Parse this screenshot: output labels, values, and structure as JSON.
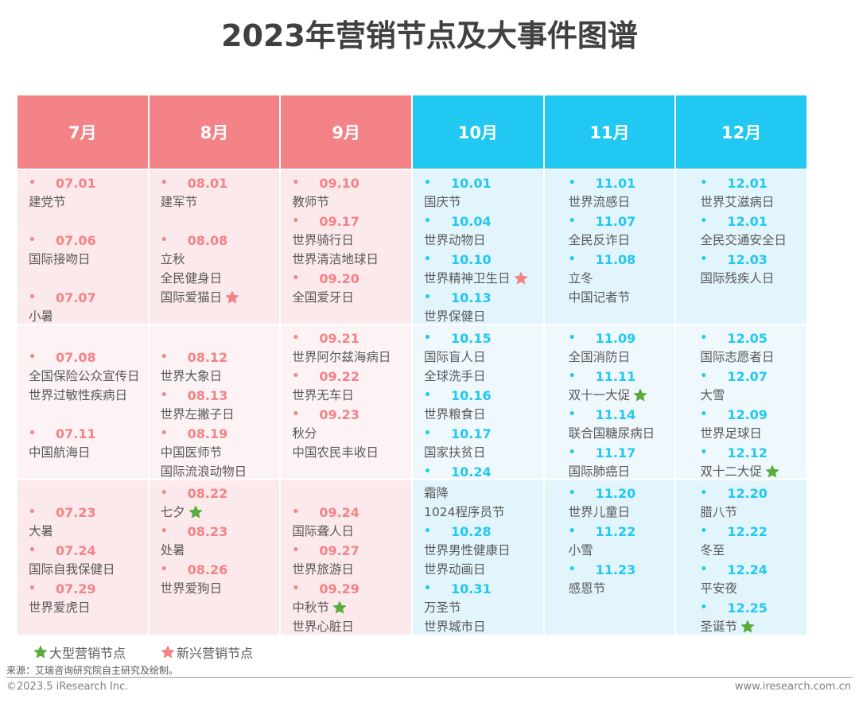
{
  "title": "2023年营销节点及大事件图谱",
  "colors": {
    "warm_header": "#f38387",
    "cool_header": "#21c8f1",
    "major_star": "#5aac3e",
    "emerging_star": "#f38387"
  },
  "months": [
    {
      "label": "7月",
      "tone": "warm"
    },
    {
      "label": "8月",
      "tone": "warm"
    },
    {
      "label": "9月",
      "tone": "warm"
    },
    {
      "label": "10月",
      "tone": "cool"
    },
    {
      "label": "11月",
      "tone": "cool"
    },
    {
      "label": "12月",
      "tone": "cool"
    }
  ],
  "rows": [
    [
      [
        {
          "date": "07.01",
          "events": [
            {
              "name": "建党节"
            }
          ]
        },
        {
          "date": "07.06",
          "gap": true,
          "events": [
            {
              "name": "国际接吻日"
            }
          ]
        },
        {
          "date": "07.07",
          "gap": true,
          "events": [
            {
              "name": "小暑"
            }
          ]
        }
      ],
      [
        {
          "date": "08.01",
          "events": [
            {
              "name": "建军节"
            }
          ]
        },
        {
          "date": "08.08",
          "gap": true,
          "events": [
            {
              "name": "立秋"
            },
            {
              "name": "全民健身日"
            },
            {
              "name": "国际爱猫日",
              "star": "emerging"
            }
          ]
        }
      ],
      [
        {
          "date": "09.10",
          "events": [
            {
              "name": "教师节"
            }
          ]
        },
        {
          "date": "09.17",
          "events": [
            {
              "name": "世界骑行日"
            },
            {
              "name": "世界清洁地球日"
            }
          ]
        },
        {
          "date": "09.20",
          "events": [
            {
              "name": "全国爱牙日"
            }
          ]
        }
      ],
      [
        {
          "date": "10.01",
          "events": [
            {
              "name": "国庆节"
            }
          ]
        },
        {
          "date": "10.04",
          "events": [
            {
              "name": "世界动物日"
            }
          ]
        },
        {
          "date": "10.10",
          "events": [
            {
              "name": "世界精神卫生日",
              "star": "emerging"
            }
          ]
        },
        {
          "date": "10.13",
          "events": [
            {
              "name": "世界保健日"
            }
          ]
        }
      ],
      [
        {
          "date": "11.01",
          "events": [
            {
              "name": "世界流感日"
            }
          ]
        },
        {
          "date": "11.07",
          "events": [
            {
              "name": "全民反诈日"
            }
          ]
        },
        {
          "date": "11.08",
          "events": [
            {
              "name": "立冬"
            },
            {
              "name": "中国记者节"
            }
          ]
        }
      ],
      [
        {
          "date": "12.01",
          "events": [
            {
              "name": "世界艾滋病日"
            }
          ]
        },
        {
          "date": "12.01",
          "events": [
            {
              "name": "全民交通安全日"
            }
          ]
        },
        {
          "date": "12.03",
          "events": [
            {
              "name": "国际残疾人日"
            }
          ]
        }
      ]
    ],
    [
      [
        {
          "date": "07.08",
          "gap": true,
          "events": [
            {
              "name": "全国保险公众宣传日"
            },
            {
              "name": "世界过敏性疾病日"
            }
          ]
        },
        {
          "date": "07.11",
          "gap": true,
          "events": [
            {
              "name": "中国航海日"
            }
          ]
        }
      ],
      [
        {
          "date": "08.12",
          "gap": true,
          "events": [
            {
              "name": "世界大象日"
            }
          ]
        },
        {
          "date": "08.13",
          "events": [
            {
              "name": "世界左撇子日"
            }
          ]
        },
        {
          "date": "08.19",
          "events": [
            {
              "name": "中国医师节"
            },
            {
              "name": "国际流浪动物日"
            }
          ]
        }
      ],
      [
        {
          "date": "09.21",
          "events": [
            {
              "name": "世界阿尔兹海病日"
            }
          ]
        },
        {
          "date": "09.22",
          "events": [
            {
              "name": "世界无车日"
            }
          ]
        },
        {
          "date": "09.23",
          "events": [
            {
              "name": "秋分"
            },
            {
              "name": "中国农民丰收日"
            }
          ]
        }
      ],
      [
        {
          "date": "10.15",
          "events": [
            {
              "name": "国际盲人日"
            },
            {
              "name": "全球洗手日"
            }
          ]
        },
        {
          "date": "10.16",
          "events": [
            {
              "name": "世界粮食日"
            }
          ]
        },
        {
          "date": "10.17",
          "events": [
            {
              "name": "国家扶贫日"
            }
          ]
        },
        {
          "date": "10.24",
          "events": []
        }
      ],
      [
        {
          "date": "11.09",
          "events": [
            {
              "name": "全国消防日"
            }
          ]
        },
        {
          "date": "11.11",
          "events": [
            {
              "name": "双十一大促",
              "star": "major"
            }
          ]
        },
        {
          "date": "11.14",
          "events": [
            {
              "name": "联合国糖尿病日"
            }
          ]
        },
        {
          "date": "11.17",
          "events": [
            {
              "name": "国际肺癌日"
            }
          ]
        }
      ],
      [
        {
          "date": "12.05",
          "events": [
            {
              "name": "国际志愿者日"
            }
          ]
        },
        {
          "date": "12.07",
          "events": [
            {
              "name": "大雪"
            }
          ]
        },
        {
          "date": "12.09",
          "events": [
            {
              "name": "世界足球日"
            }
          ]
        },
        {
          "date": "12.12",
          "events": [
            {
              "name": "双十二大促",
              "star": "major"
            }
          ]
        }
      ]
    ],
    [
      [
        {
          "date": "07.23",
          "gap": true,
          "events": [
            {
              "name": "大暑"
            }
          ]
        },
        {
          "date": "07.24",
          "events": [
            {
              "name": "国际自我保健日"
            }
          ]
        },
        {
          "date": "07.29",
          "events": [
            {
              "name": "世界爱虎日"
            }
          ]
        }
      ],
      [
        {
          "date": "08.22",
          "events": [
            {
              "name": "七夕",
              "star": "major"
            }
          ]
        },
        {
          "date": "08.23",
          "events": [
            {
              "name": "处暑"
            }
          ]
        },
        {
          "date": "08.26",
          "events": [
            {
              "name": "世界爱狗日"
            }
          ]
        }
      ],
      [
        {
          "date": "09.24",
          "gap": true,
          "events": [
            {
              "name": "国际聋人日"
            }
          ]
        },
        {
          "date": "09.27",
          "events": [
            {
              "name": "世界旅游日"
            }
          ]
        },
        {
          "date": "09.29",
          "events": [
            {
              "name": "中秋节",
              "star": "major"
            },
            {
              "name": "世界心脏日"
            }
          ]
        }
      ],
      [
        {
          "date": null,
          "events": [
            {
              "name": "霜降"
            },
            {
              "name": "1024程序员节"
            }
          ]
        },
        {
          "date": "10.28",
          "events": [
            {
              "name": "世界男性健康日"
            },
            {
              "name": "世界动画日"
            }
          ]
        },
        {
          "date": "10.31",
          "events": [
            {
              "name": "万圣节"
            },
            {
              "name": "世界城市日"
            }
          ]
        }
      ],
      [
        {
          "date": "11.20",
          "events": [
            {
              "name": "世界儿童日"
            }
          ]
        },
        {
          "date": "11.22",
          "events": [
            {
              "name": "小雪"
            }
          ]
        },
        {
          "date": "11.23",
          "events": [
            {
              "name": "感恩节"
            }
          ]
        }
      ],
      [
        {
          "date": "12.20",
          "events": [
            {
              "name": "腊八节"
            }
          ]
        },
        {
          "date": "12.22",
          "events": [
            {
              "name": "冬至"
            }
          ]
        },
        {
          "date": "12.24",
          "events": [
            {
              "name": "平安夜"
            }
          ]
        },
        {
          "date": "12.25",
          "events": [
            {
              "name": "圣诞节",
              "star": "major"
            }
          ]
        }
      ]
    ]
  ],
  "legend": {
    "major_label": "大型营销节点",
    "emerging_label": "新兴营销节点"
  },
  "footer": {
    "source": "来源：艾瑞咨询研究院自主研究及绘制。",
    "copyright": "©2023.5 iResearch Inc.",
    "website": "www.iresearch.com.cn"
  }
}
